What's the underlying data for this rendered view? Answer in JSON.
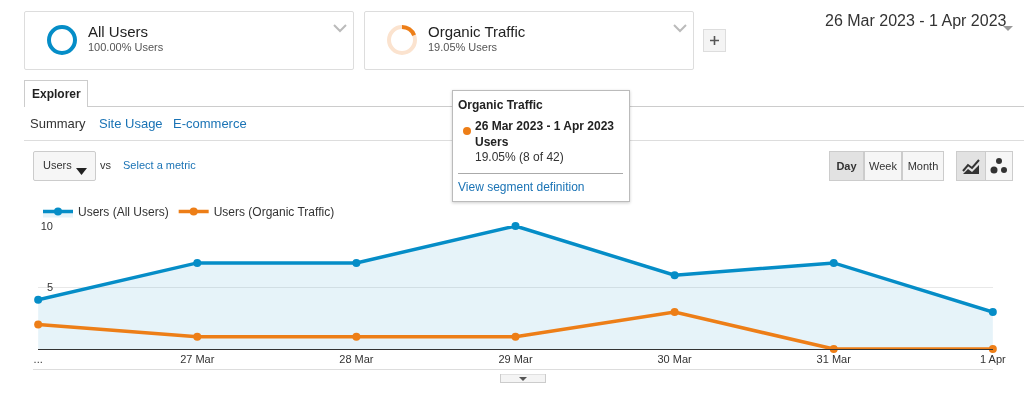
{
  "chart_data": {
    "type": "line",
    "categories": [
      "...",
      "27 Mar",
      "28 Mar",
      "29 Mar",
      "30 Mar",
      "31 Mar",
      "1 Apr"
    ],
    "series": [
      {
        "name": "Users (All Users)",
        "type": "area",
        "color": "#058dc7",
        "values": [
          4,
          7,
          7,
          10,
          6,
          7,
          3
        ]
      },
      {
        "name": "Users (Organic Traffic)",
        "type": "line",
        "color": "#ed7e17",
        "values": [
          2,
          1,
          1,
          1,
          3,
          0,
          0
        ]
      }
    ],
    "ylim": [
      0,
      10
    ],
    "yticks": [
      5,
      10
    ],
    "grid": "y",
    "legend": "top left",
    "marker": "circle",
    "line_style": "solid",
    "annotations": [
      "All Users",
      "100.00% Users",
      "Organic Traffic",
      "19.05% Users",
      "26 Mar 2023 - 1 Apr 2023",
      "Explorer",
      "Summary",
      "Site Usage",
      "E-commerce",
      "Users",
      "vs",
      "Select a metric",
      "Day",
      "Week",
      "Month",
      "Organic Traffic",
      "26 Mar 2023 - 1 Apr 2023",
      "Users",
      "19.05% (8 of 42)",
      "View segment definition"
    ]
  }
}
